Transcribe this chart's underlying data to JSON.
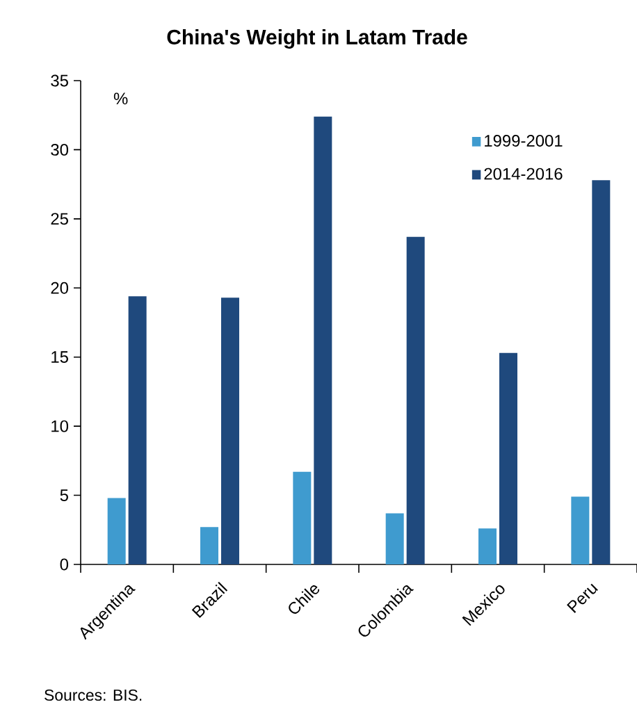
{
  "chart_data": {
    "type": "bar",
    "title": "China's Weight in Latam Trade",
    "categories": [
      "Argentina",
      "Brazil",
      "Chile",
      "Colombia",
      "Mexico",
      "Peru"
    ],
    "series": [
      {
        "name": "1999-2001",
        "color": "#3f9bcf",
        "values": [
          4.8,
          2.7,
          6.7,
          3.7,
          2.6,
          4.9
        ]
      },
      {
        "name": "2014-2016",
        "color": "#1f497d",
        "values": [
          19.4,
          19.3,
          32.4,
          23.7,
          15.3,
          27.8
        ]
      }
    ],
    "ylim": [
      0,
      35
    ],
    "yticks": [
      0,
      5,
      10,
      15,
      20,
      25,
      30,
      35
    ],
    "ylabel": "%",
    "legend": "top right",
    "grid": false,
    "annotations": [
      "Sources: BIS."
    ]
  }
}
